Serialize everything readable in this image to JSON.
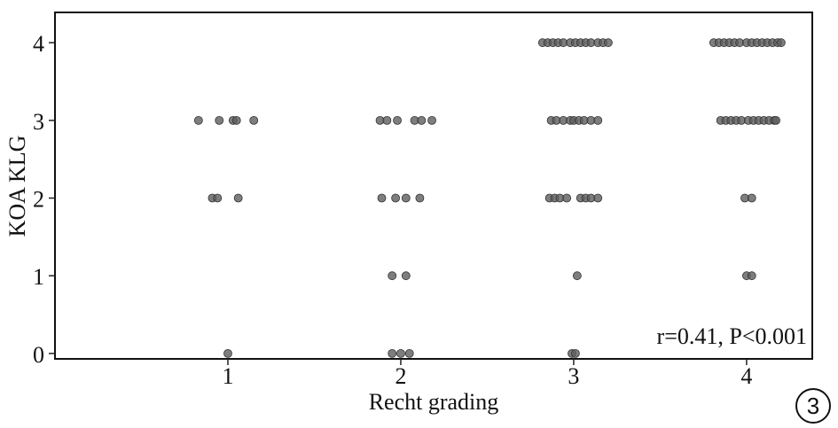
{
  "chart_data": {
    "type": "scatter",
    "x_label": "Recht grading",
    "y_label": "KOA KLG",
    "annotation": "r=0.41, P<0.001",
    "panel_label": "3",
    "xlim": [
      0.0,
      4.38
    ],
    "ylim": [
      -0.07,
      4.39
    ],
    "xticks": [
      1,
      2,
      3,
      4
    ],
    "yticks": [
      0,
      1,
      2,
      3,
      4
    ],
    "grid": false,
    "series": [
      {
        "color": "#5e5e5e",
        "x": [
          0.83,
          0.95,
          1.03,
          1.05,
          1.15,
          0.91,
          0.94,
          1.06,
          1.0,
          1.88,
          1.92,
          1.98,
          2.08,
          2.12,
          2.18,
          1.89,
          1.97,
          2.03,
          2.11,
          1.95,
          2.03,
          1.95,
          2.0,
          2.05,
          2.82,
          2.85,
          2.88,
          2.91,
          2.94,
          2.98,
          3.01,
          3.04,
          3.07,
          3.1,
          3.14,
          3.17,
          3.2,
          2.87,
          2.9,
          2.94,
          2.98,
          3.0,
          3.03,
          3.06,
          3.1,
          3.14,
          2.86,
          2.89,
          2.92,
          2.96,
          3.04,
          3.07,
          3.1,
          3.14,
          3.02,
          2.99,
          3.01,
          3.81,
          3.84,
          3.87,
          3.9,
          3.93,
          3.96,
          4.0,
          4.03,
          4.06,
          4.09,
          4.12,
          4.15,
          4.18,
          4.2,
          3.85,
          3.88,
          3.91,
          3.94,
          3.97,
          4.01,
          4.04,
          4.07,
          4.1,
          4.13,
          4.16,
          4.17,
          3.99,
          4.03,
          4.0,
          4.03
        ],
        "y": [
          3,
          3,
          3,
          3,
          3,
          2,
          2,
          2,
          0,
          3,
          3,
          3,
          3,
          3,
          3,
          2,
          2,
          2,
          2,
          1,
          1,
          0,
          0,
          0,
          4,
          4,
          4,
          4,
          4,
          4,
          4,
          4,
          4,
          4,
          4,
          4,
          4,
          3,
          3,
          3,
          3,
          3,
          3,
          3,
          3,
          3,
          2,
          2,
          2,
          2,
          2,
          2,
          2,
          2,
          1,
          0,
          0,
          4,
          4,
          4,
          4,
          4,
          4,
          4,
          4,
          4,
          4,
          4,
          4,
          4,
          4,
          3,
          3,
          3,
          3,
          3,
          3,
          3,
          3,
          3,
          3,
          3,
          3,
          2,
          2,
          1,
          1
        ]
      }
    ]
  }
}
